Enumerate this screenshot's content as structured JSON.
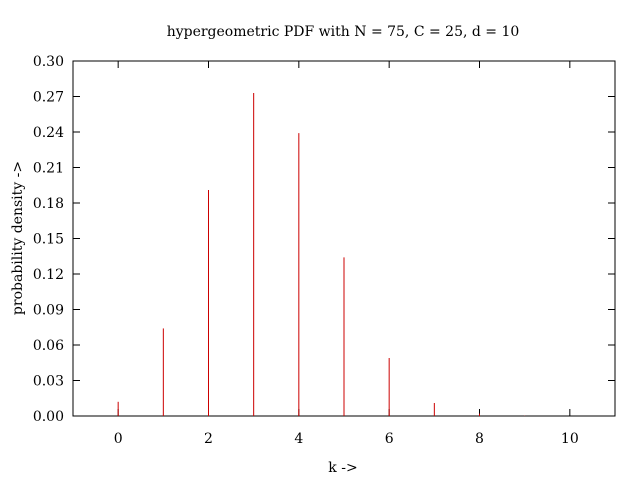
{
  "chart_data": {
    "type": "bar",
    "style": "impulses",
    "title": "hypergeometric PDF with N = 75, C = 25, d = 10",
    "xlabel": "k ->",
    "ylabel": "probability density ->",
    "xlim": [
      -1,
      11
    ],
    "ylim": [
      0,
      0.3
    ],
    "xticks": [
      0,
      2,
      4,
      6,
      8,
      10
    ],
    "xtick_labels": [
      "0",
      "2",
      "4",
      "6",
      "8",
      "10"
    ],
    "yticks": [
      0.0,
      0.03,
      0.06,
      0.09,
      0.12,
      0.15,
      0.18,
      0.21,
      0.24,
      0.27,
      0.3
    ],
    "ytick_labels": [
      "0.00",
      "0.03",
      "0.06",
      "0.09",
      "0.12",
      "0.15",
      "0.18",
      "0.21",
      "0.24",
      "0.27",
      "0.30"
    ],
    "grid": false,
    "color": "#cc0000",
    "x": [
      0,
      1,
      2,
      3,
      4,
      5,
      6,
      7,
      8,
      9,
      10
    ],
    "values": [
      0.012,
      0.074,
      0.191,
      0.273,
      0.239,
      0.134,
      0.049,
      0.011,
      0.002,
      0.0002,
      1e-05
    ]
  }
}
